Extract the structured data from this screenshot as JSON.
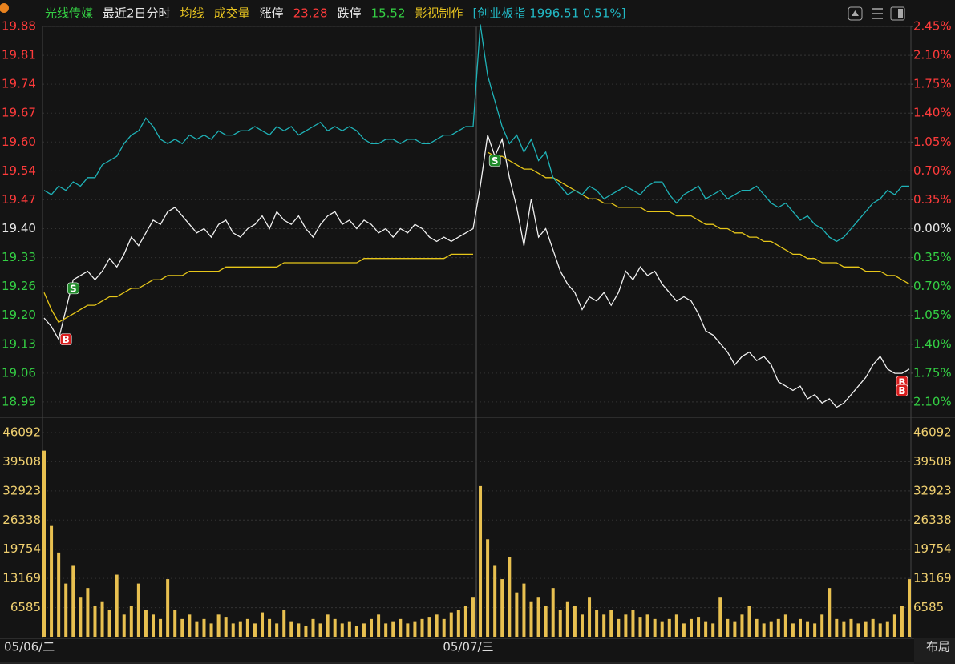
{
  "header": [
    {
      "text": "光线传媒",
      "color": "#34d044"
    },
    {
      "text": "最近2日分时",
      "color": "#e8e8e8"
    },
    {
      "text": "均线",
      "color": "#e8c420"
    },
    {
      "text": "成交量",
      "color": "#e8c420"
    },
    {
      "text": "涨停",
      "color": "#e8e8e8"
    },
    {
      "text": "23.28",
      "color": "#ff3b3b"
    },
    {
      "text": "跌停",
      "color": "#e8e8e8"
    },
    {
      "text": "15.52",
      "color": "#34d044"
    },
    {
      "text": "影视制作",
      "color": "#e8c420"
    },
    {
      "text": "[创业板指 1996.51 0.51%]",
      "color": "#22b8c4"
    }
  ],
  "x_labels": [
    "05/06/二",
    "05/07/三"
  ],
  "layout_button": "布局",
  "chart_data": [
    {
      "type": "line",
      "ylim": [
        18.9586,
        19.8753
      ],
      "yticks": [
        19.8753,
        19.8074,
        19.7395,
        19.6716,
        19.6037,
        19.5358,
        19.4679,
        {
          "value": 19.4,
          "label": "19.40"
        },
        19.3321,
        19.2642,
        19.1963,
        19.1284,
        19.0605,
        18.9926
      ],
      "ytick_labels": [
        "19.88",
        "19.81",
        "19.74",
        "19.67",
        "19.60",
        "19.54",
        "19.47",
        "19.40",
        "19.33",
        "19.26",
        "19.20",
        "19.13",
        "19.06",
        "18.99"
      ],
      "y2lim": [
        -2.275,
        2.45
      ],
      "y2ticks": [
        {
          "value": 2.45,
          "label": "2.45%"
        },
        {
          "value": 2.1,
          "label": "2.10%"
        },
        {
          "value": 1.75,
          "label": "1.75%"
        },
        {
          "value": 1.4,
          "label": "1.40%"
        },
        {
          "value": 1.05,
          "label": "1.05%"
        },
        {
          "value": 0.7,
          "label": "0.70%"
        },
        {
          "value": 0.35,
          "label": "0.35%"
        },
        {
          "value": 0,
          "label": "0.00%"
        },
        {
          "value": -0.35,
          "label": "0.35%"
        },
        {
          "value": -0.7,
          "label": "0.70%"
        },
        {
          "value": -1.05,
          "label": "1.05%"
        },
        {
          "value": -1.4,
          "label": "1.40%"
        },
        {
          "value": -1.75,
          "label": "1.75%"
        },
        {
          "value": -2.1,
          "label": "2.10%"
        }
      ],
      "up_color": "#ff3b3b",
      "down_color": "#34d044",
      "flat_color": "#e8e8e8",
      "grid": true,
      "series": [
        {
          "color": "#f2f2f2",
          "values": [
            19.19,
            19.17,
            19.14,
            19.21,
            19.28,
            19.29,
            19.3,
            19.28,
            19.3,
            19.33,
            19.31,
            19.34,
            19.38,
            19.36,
            19.39,
            19.42,
            19.41,
            19.44,
            19.45,
            19.43,
            19.41,
            19.39,
            19.4,
            19.38,
            19.41,
            19.42,
            19.39,
            19.38,
            19.4,
            19.41,
            19.43,
            19.4,
            19.44,
            19.42,
            19.41,
            19.43,
            19.4,
            19.38,
            19.41,
            19.43,
            19.44,
            19.41,
            19.42,
            19.4,
            19.42,
            19.41,
            19.39,
            19.4,
            19.38,
            19.4,
            19.39,
            19.41,
            19.4,
            19.38,
            19.37,
            19.38,
            19.37,
            19.38,
            19.39,
            19.4,
            19.5,
            19.62,
            19.57,
            19.61,
            19.52,
            19.45,
            19.36,
            19.47,
            19.38,
            19.4,
            19.35,
            19.3,
            19.27,
            19.25,
            19.21,
            19.24,
            19.23,
            19.25,
            19.22,
            19.25,
            19.3,
            19.28,
            19.31,
            19.29,
            19.3,
            19.27,
            19.25,
            19.23,
            19.24,
            19.23,
            19.2,
            19.16,
            19.15,
            19.13,
            19.11,
            19.08,
            19.1,
            19.11,
            19.09,
            19.1,
            19.08,
            19.04,
            19.03,
            19.02,
            19.03,
            19.0,
            19.01,
            18.99,
            19.0,
            18.98,
            18.99,
            19.01,
            19.03,
            19.05,
            19.08,
            19.1,
            19.07,
            19.06,
            19.06,
            19.07
          ]
        },
        {
          "color": "#e6c619",
          "values": [
            19.25,
            19.21,
            19.18,
            19.19,
            19.2,
            19.21,
            19.22,
            19.22,
            19.23,
            19.24,
            19.24,
            19.25,
            19.26,
            19.26,
            19.27,
            19.28,
            19.28,
            19.29,
            19.29,
            19.29,
            19.3,
            19.3,
            19.3,
            19.3,
            19.3,
            19.31,
            19.31,
            19.31,
            19.31,
            19.31,
            19.31,
            19.31,
            19.31,
            19.32,
            19.32,
            19.32,
            19.32,
            19.32,
            19.32,
            19.32,
            19.32,
            19.32,
            19.32,
            19.32,
            19.33,
            19.33,
            19.33,
            19.33,
            19.33,
            19.33,
            19.33,
            19.33,
            19.33,
            19.33,
            19.33,
            19.33,
            19.34,
            19.34,
            19.34,
            19.34,
            null,
            19.58,
            19.57,
            19.57,
            19.56,
            19.55,
            19.54,
            19.54,
            19.53,
            19.52,
            19.52,
            19.51,
            19.5,
            19.49,
            19.48,
            19.47,
            19.47,
            19.46,
            19.46,
            19.45,
            19.45,
            19.45,
            19.45,
            19.44,
            19.44,
            19.44,
            19.44,
            19.43,
            19.43,
            19.43,
            19.42,
            19.41,
            19.41,
            19.4,
            19.4,
            19.39,
            19.39,
            19.38,
            19.38,
            19.37,
            19.37,
            19.36,
            19.35,
            19.34,
            19.34,
            19.33,
            19.33,
            19.32,
            19.32,
            19.32,
            19.31,
            19.31,
            19.31,
            19.3,
            19.3,
            19.3,
            19.29,
            19.29,
            19.28,
            19.27
          ]
        },
        {
          "color": "#1fb3b8",
          "values": [
            19.49,
            19.48,
            19.5,
            19.49,
            19.51,
            19.5,
            19.52,
            19.52,
            19.55,
            19.56,
            19.57,
            19.6,
            19.62,
            19.63,
            19.66,
            19.64,
            19.61,
            19.6,
            19.61,
            19.6,
            19.62,
            19.61,
            19.62,
            19.61,
            19.63,
            19.62,
            19.62,
            19.63,
            19.63,
            19.64,
            19.63,
            19.62,
            19.64,
            19.63,
            19.64,
            19.62,
            19.63,
            19.64,
            19.65,
            19.63,
            19.64,
            19.63,
            19.64,
            19.63,
            19.61,
            19.6,
            19.6,
            19.61,
            19.61,
            19.6,
            19.61,
            19.61,
            19.6,
            19.6,
            19.61,
            19.62,
            19.62,
            19.63,
            19.64,
            19.64,
            19.88,
            19.76,
            19.7,
            19.64,
            19.6,
            19.62,
            19.58,
            19.61,
            19.56,
            19.58,
            19.52,
            19.5,
            19.48,
            19.49,
            19.48,
            19.5,
            19.49,
            19.47,
            19.48,
            19.49,
            19.5,
            19.49,
            19.48,
            19.5,
            19.51,
            19.51,
            19.48,
            19.46,
            19.48,
            19.49,
            19.5,
            19.47,
            19.48,
            19.49,
            19.47,
            19.48,
            19.49,
            19.49,
            19.5,
            19.48,
            19.46,
            19.45,
            19.46,
            19.44,
            19.42,
            19.43,
            19.41,
            19.4,
            19.38,
            19.37,
            19.38,
            19.4,
            19.42,
            19.44,
            19.46,
            19.47,
            19.49,
            19.48,
            19.5,
            19.5
          ]
        }
      ],
      "annotations": [
        {
          "text": "B",
          "x": 3,
          "value": 19.14,
          "color": "#d81e1e"
        },
        {
          "text": "S",
          "x": 4,
          "value": 19.26,
          "color": "#1f8a2a"
        },
        {
          "text": "S",
          "x": 62,
          "value": 19.56,
          "color": "#1f8a2a"
        },
        {
          "text": "B",
          "x": 118,
          "value": 19.04,
          "color": "#d81e1e"
        },
        {
          "text": "B",
          "x": 118,
          "value": 19.02,
          "color": "#d81e1e"
        }
      ]
    },
    {
      "type": "bar",
      "ylim": [
        0,
        46092
      ],
      "yticks": [
        46092,
        39508,
        32923,
        26338,
        19754,
        13169,
        6585
      ],
      "tick_color": "#f0d070",
      "grid": true,
      "color": "#e8c050",
      "values": [
        42000,
        25000,
        19000,
        12000,
        16000,
        9000,
        11000,
        7000,
        8000,
        6000,
        14000,
        5000,
        7000,
        12000,
        6000,
        5000,
        4000,
        13000,
        6000,
        4000,
        5000,
        3500,
        4000,
        3000,
        5000,
        4500,
        3000,
        3500,
        4000,
        3000,
        5500,
        4000,
        3000,
        6000,
        3500,
        3000,
        2500,
        4000,
        3000,
        5000,
        4000,
        3000,
        3500,
        2500,
        3000,
        4000,
        5000,
        3000,
        3500,
        4000,
        3000,
        3500,
        4000,
        4500,
        5000,
        4000,
        5500,
        6000,
        7000,
        9000,
        34000,
        22000,
        16000,
        13000,
        18000,
        10000,
        12000,
        8000,
        9000,
        7000,
        11000,
        6000,
        8000,
        7000,
        5000,
        9000,
        6000,
        5000,
        6000,
        4000,
        5000,
        6000,
        4500,
        5000,
        4000,
        3500,
        4000,
        5000,
        3000,
        4000,
        4500,
        3500,
        3000,
        9000,
        4000,
        3500,
        5000,
        7000,
        4000,
        3000,
        3500,
        4000,
        5000,
        3000,
        4000,
        3500,
        3000,
        5000,
        11000,
        4000,
        3500,
        4000,
        3000,
        3500,
        4000,
        3000,
        3500,
        5000,
        7000,
        13000
      ]
    }
  ]
}
